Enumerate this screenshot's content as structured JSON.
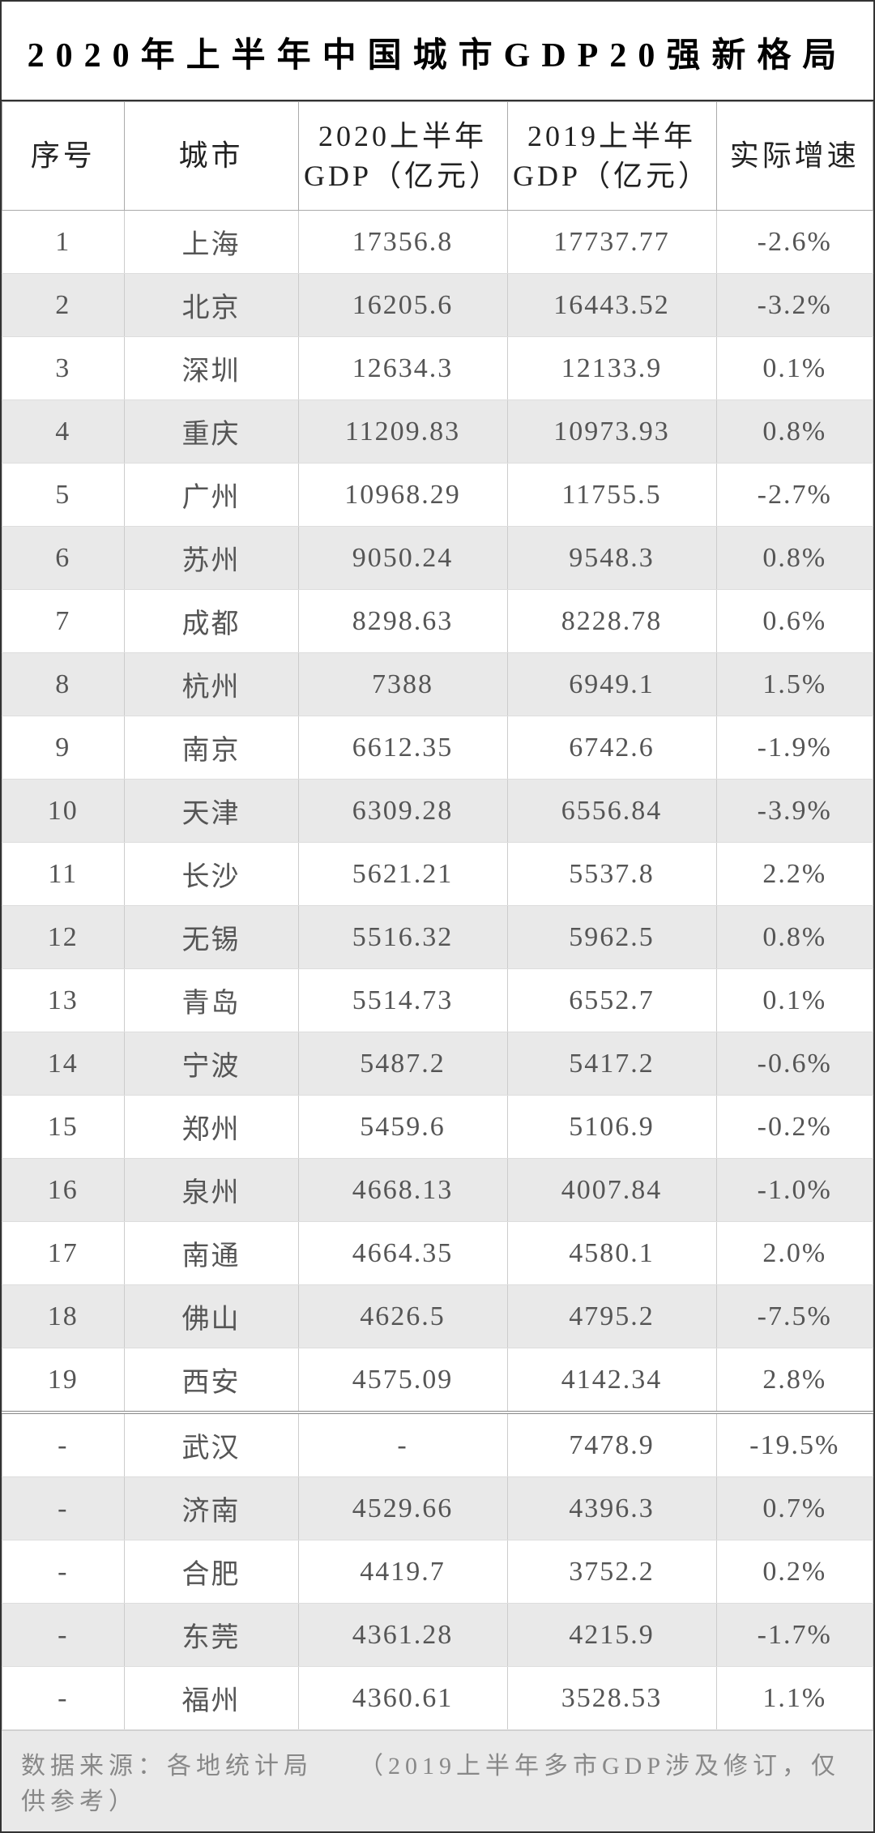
{
  "title": "2020年上半年中国城市GDP20强新格局",
  "columns": {
    "rank": "序号",
    "city": "城市",
    "gdp2020": "2020上半年\nGDP（亿元）",
    "gdp2019": "2019上半年\nGDP（亿元）",
    "growth": "实际增速"
  },
  "rows": [
    {
      "rank": "1",
      "city": "上海",
      "gdp2020": "17356.8",
      "gdp2019": "17737.77",
      "growth": "-2.6%",
      "alt": false
    },
    {
      "rank": "2",
      "city": "北京",
      "gdp2020": "16205.6",
      "gdp2019": "16443.52",
      "growth": "-3.2%",
      "alt": true
    },
    {
      "rank": "3",
      "city": "深圳",
      "gdp2020": "12634.3",
      "gdp2019": "12133.9",
      "growth": "0.1%",
      "alt": false
    },
    {
      "rank": "4",
      "city": "重庆",
      "gdp2020": "11209.83",
      "gdp2019": "10973.93",
      "growth": "0.8%",
      "alt": true
    },
    {
      "rank": "5",
      "city": "广州",
      "gdp2020": "10968.29",
      "gdp2019": "11755.5",
      "growth": "-2.7%",
      "alt": false
    },
    {
      "rank": "6",
      "city": "苏州",
      "gdp2020": "9050.24",
      "gdp2019": "9548.3",
      "growth": "0.8%",
      "alt": true
    },
    {
      "rank": "7",
      "city": "成都",
      "gdp2020": "8298.63",
      "gdp2019": "8228.78",
      "growth": "0.6%",
      "alt": false
    },
    {
      "rank": "8",
      "city": "杭州",
      "gdp2020": "7388",
      "gdp2019": "6949.1",
      "growth": "1.5%",
      "alt": true
    },
    {
      "rank": "9",
      "city": "南京",
      "gdp2020": "6612.35",
      "gdp2019": "6742.6",
      "growth": "-1.9%",
      "alt": false
    },
    {
      "rank": "10",
      "city": "天津",
      "gdp2020": "6309.28",
      "gdp2019": "6556.84",
      "growth": "-3.9%",
      "alt": true
    },
    {
      "rank": "11",
      "city": "长沙",
      "gdp2020": "5621.21",
      "gdp2019": "5537.8",
      "growth": "2.2%",
      "alt": false
    },
    {
      "rank": "12",
      "city": "无锡",
      "gdp2020": "5516.32",
      "gdp2019": "5962.5",
      "growth": "0.8%",
      "alt": true
    },
    {
      "rank": "13",
      "city": "青岛",
      "gdp2020": "5514.73",
      "gdp2019": "6552.7",
      "growth": "0.1%",
      "alt": false
    },
    {
      "rank": "14",
      "city": "宁波",
      "gdp2020": "5487.2",
      "gdp2019": "5417.2",
      "growth": "-0.6%",
      "alt": true
    },
    {
      "rank": "15",
      "city": "郑州",
      "gdp2020": "5459.6",
      "gdp2019": "5106.9",
      "growth": "-0.2%",
      "alt": false
    },
    {
      "rank": "16",
      "city": "泉州",
      "gdp2020": "4668.13",
      "gdp2019": "4007.84",
      "growth": "-1.0%",
      "alt": true
    },
    {
      "rank": "17",
      "city": "南通",
      "gdp2020": "4664.35",
      "gdp2019": "4580.1",
      "growth": "2.0%",
      "alt": false
    },
    {
      "rank": "18",
      "city": "佛山",
      "gdp2020": "4626.5",
      "gdp2019": "4795.2",
      "growth": "-7.5%",
      "alt": true
    },
    {
      "rank": "19",
      "city": "西安",
      "gdp2020": "4575.09",
      "gdp2019": "4142.34",
      "growth": "2.8%",
      "alt": false
    },
    {
      "rank": "-",
      "city": "武汉",
      "gdp2020": "-",
      "gdp2019": "7478.9",
      "growth": "-19.5%",
      "alt": false,
      "sep": true
    },
    {
      "rank": "-",
      "city": "济南",
      "gdp2020": "4529.66",
      "gdp2019": "4396.3",
      "growth": "0.7%",
      "alt": true
    },
    {
      "rank": "-",
      "city": "合肥",
      "gdp2020": "4419.7",
      "gdp2019": "3752.2",
      "growth": "0.2%",
      "alt": false
    },
    {
      "rank": "-",
      "city": "东莞",
      "gdp2020": "4361.28",
      "gdp2019": "4215.9",
      "growth": "-1.7%",
      "alt": true
    },
    {
      "rank": "-",
      "city": "福州",
      "gdp2020": "4360.61",
      "gdp2019": "3528.53",
      "growth": "1.1%",
      "alt": false
    }
  ],
  "footer": "数据来源：各地统计局　　（2019上半年多市GDP涉及修订，仅供参考）",
  "colors": {
    "alt_row_bg": "#e9e9e9",
    "text_main": "#555555",
    "text_title": "#000000",
    "border": "#aaaaaa"
  },
  "typography": {
    "title_fontsize_pt": 32,
    "header_fontsize_pt": 27,
    "cell_fontsize_pt": 26,
    "footer_fontsize_pt": 23,
    "font_family": "SimSun"
  },
  "column_widths_pct": {
    "rank": 14,
    "city": 20,
    "gdp2020": 24,
    "gdp2019": 24,
    "growth": 18
  }
}
